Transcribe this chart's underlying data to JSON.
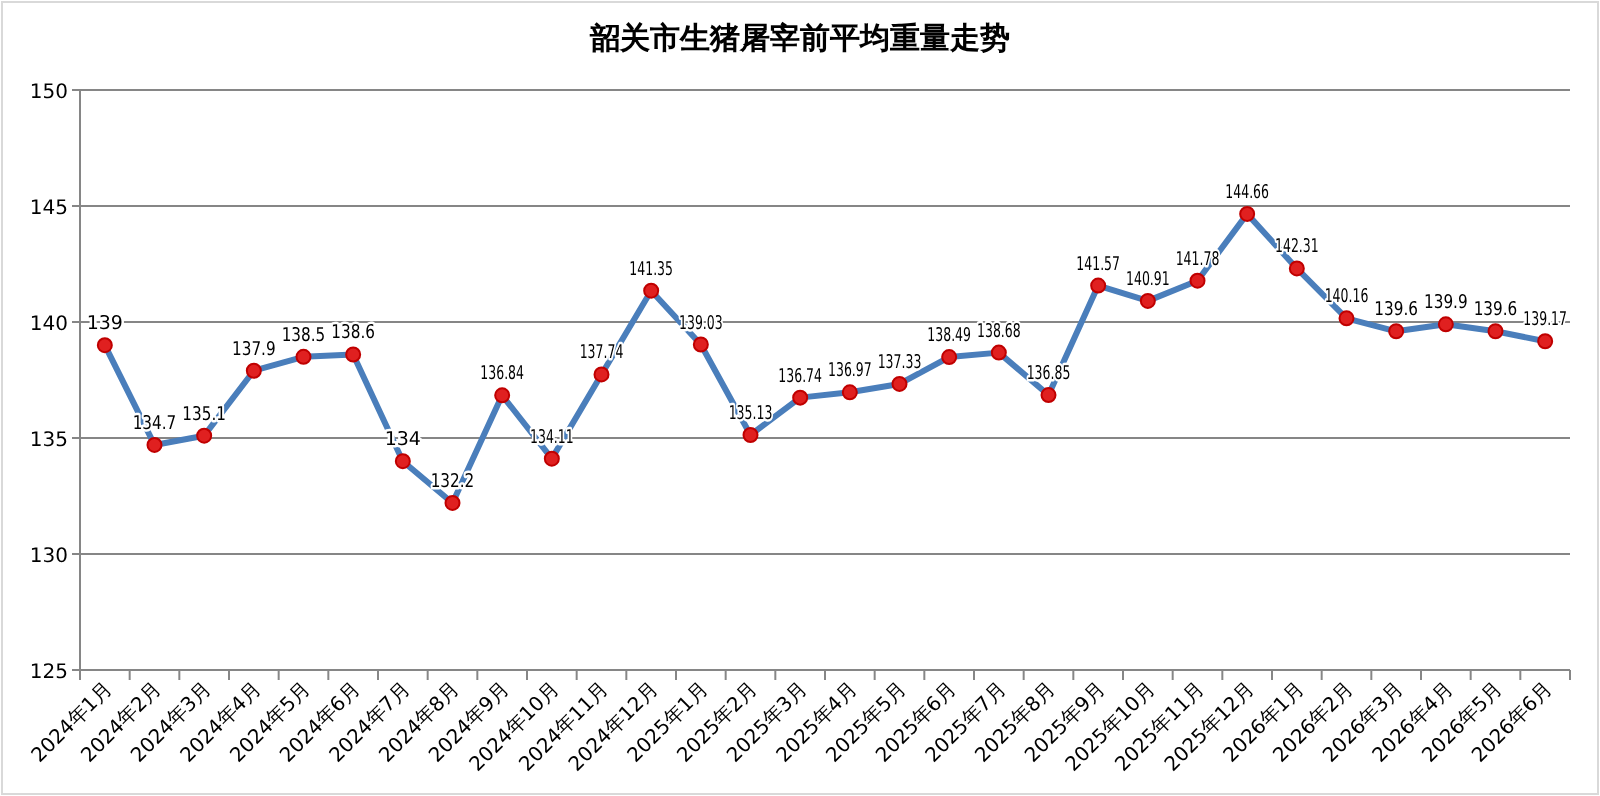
{
  "chart_data": {
    "type": "line",
    "title": "韶关市生猪屠宰前平均重量走势",
    "categories": [
      "2024年1月",
      "2024年2月",
      "2024年3月",
      "2024年4月",
      "2024年5月",
      "2024年6月",
      "2024年7月",
      "2024年8月",
      "2024年9月",
      "2024年10月",
      "2024年11月",
      "2024年12月",
      "2025年1月",
      "2025年2月",
      "2025年3月",
      "2025年4月",
      "2025年5月",
      "2025年6月",
      "2025年7月",
      "2025年8月",
      "2025年9月",
      "2025年10月",
      "2025年11月",
      "2025年12月",
      "2026年1月",
      "2026年2月",
      "2026年3月",
      "2026年4月",
      "2026年5月",
      "2026年6月"
    ],
    "values": [
      139,
      134.7,
      135.1,
      137.9,
      138.5,
      138.6,
      134,
      132.2,
      136.84,
      134.11,
      137.74,
      141.35,
      139.03,
      135.13,
      136.74,
      136.97,
      137.33,
      138.49,
      138.68,
      136.85,
      141.57,
      140.91,
      141.78,
      144.66,
      142.31,
      140.16,
      139.6,
      139.9,
      139.6,
      139.17
    ],
    "color": "#4a7ebb",
    "marker": "circle",
    "line_style": "solid",
    "data_labels": true,
    "ylim": [
      125,
      150
    ],
    "yticks": [
      125,
      130,
      135,
      140,
      145,
      150
    ],
    "grid": "y"
  }
}
